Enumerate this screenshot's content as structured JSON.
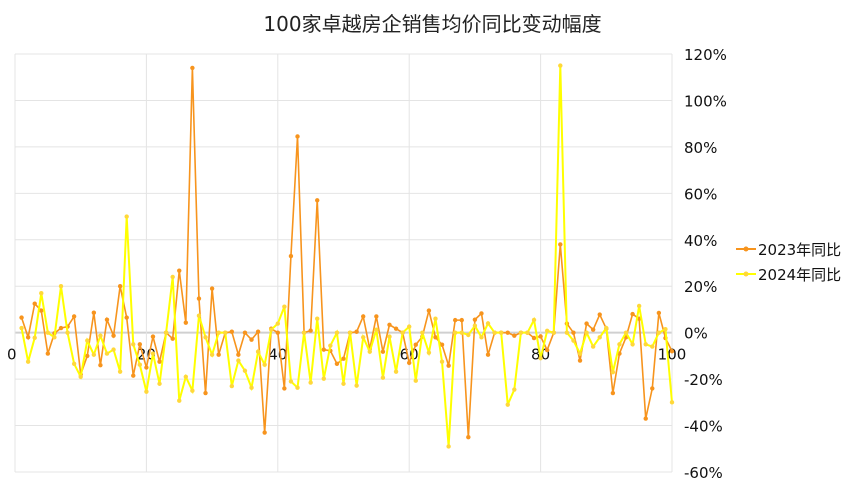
{
  "chart_data": {
    "type": "line",
    "title": "100家卓越房企销售均价同比变动幅度",
    "xlim": [
      0,
      100
    ],
    "ylim": [
      -60,
      120
    ],
    "x_ticks": [
      "0",
      "20",
      "40",
      "60",
      "80",
      "100"
    ],
    "y_ticks": [
      "120%",
      "100%",
      "80%",
      "60%",
      "40%",
      "20%",
      "0%",
      "-20%",
      "-40%",
      "-60%"
    ],
    "y_unit": "%",
    "grid": true,
    "legend_position": "right",
    "series": [
      {
        "name": "2023年同比",
        "color": "#f7941d",
        "values": [
          6.5,
          -2,
          12.5,
          9.5,
          -9,
          -0.3,
          2,
          2.6,
          7,
          -18,
          -10,
          8.6,
          -14,
          5.6,
          -1.3,
          20,
          6.5,
          -18.5,
          -5,
          -15,
          -1.7,
          -12.5,
          0,
          -2.6,
          26.7,
          4.3,
          114,
          14.7,
          -26,
          19,
          -9.5,
          0,
          0.4,
          -9.5,
          0,
          -3,
          0.4,
          -43,
          1.7,
          0,
          -24,
          33,
          84.5,
          0,
          0.9,
          57,
          -7.3,
          -7.8,
          -13.4,
          -11.2,
          0,
          0.4,
          7,
          -7,
          7,
          -8.2,
          3.4,
          1.7,
          0,
          -13,
          -5.2,
          -1.7,
          9.5,
          -2,
          -5.2,
          -14.2,
          5.4,
          5.4,
          -45,
          5.6,
          8.3,
          -9.5,
          0,
          0,
          0,
          -1.3,
          0,
          0,
          -2.3,
          -1.6,
          -7.5,
          0,
          38,
          3.9,
          0,
          -12,
          3.9,
          1.3,
          7.8,
          1.7,
          -26,
          -9,
          -2,
          8,
          6,
          -37,
          -24,
          8.5,
          -2.3,
          -8
        ]
      },
      {
        "name": "2024年同比",
        "color": "#ffff00",
        "values": [
          2,
          -12.5,
          -2.2,
          17,
          0,
          -2,
          20,
          0,
          -13.4,
          -19,
          -3.4,
          -9.5,
          -1.3,
          -9,
          -7.3,
          -16.8,
          50,
          -5,
          -13.8,
          -25.4,
          -9,
          -22,
          0,
          24,
          -29.3,
          -19,
          -25,
          7.3,
          -2,
          -9.5,
          0,
          0,
          -23,
          -12,
          -16.4,
          -23.7,
          -8.2,
          -13.8,
          1.3,
          3.9,
          11.2,
          -21,
          -23.7,
          0,
          -21.5,
          6,
          -19.8,
          -5.6,
          0,
          -22,
          0,
          -22.8,
          -2,
          -8.2,
          1.3,
          -19.4,
          -1.7,
          -16.8,
          0,
          2.6,
          -20.7,
          0,
          -8.6,
          6,
          -12.5,
          -49,
          0,
          0,
          -1,
          3,
          -2,
          4,
          0,
          0,
          -31,
          -24.5,
          0,
          0,
          5.5,
          -11,
          0.8,
          0,
          115,
          0,
          -3.4,
          -9,
          0,
          -6,
          -2,
          2,
          -17,
          -5,
          0,
          -5,
          11.5,
          -5,
          -6,
          0,
          1.5,
          -30
        ]
      }
    ]
  }
}
